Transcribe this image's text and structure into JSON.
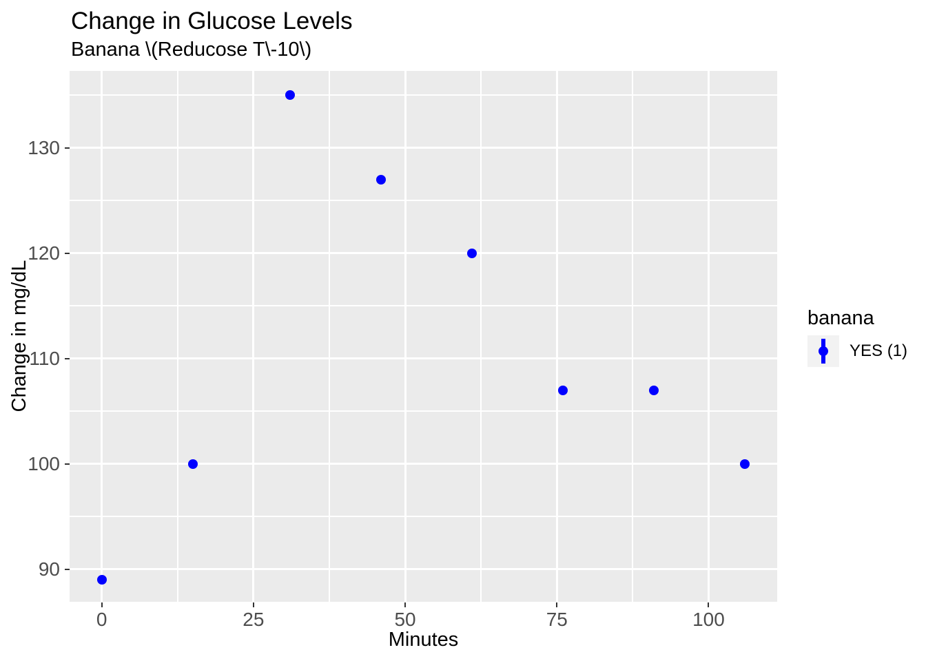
{
  "chart_data": {
    "type": "scatter",
    "title": "Change in Glucose Levels",
    "subtitle": "Banana \\(Reducose T\\-10\\)",
    "xlabel": "Minutes",
    "ylabel": "Change in mg/dL",
    "series": [
      {
        "name": "YES (1)",
        "color": "#0000FF",
        "points": [
          {
            "x": 0,
            "y": 89
          },
          {
            "x": 15,
            "y": 100
          },
          {
            "x": 31,
            "y": 135
          },
          {
            "x": 46,
            "y": 127
          },
          {
            "x": 61,
            "y": 120
          },
          {
            "x": 76,
            "y": 107
          },
          {
            "x": 91,
            "y": 107
          },
          {
            "x": 106,
            "y": 100
          }
        ]
      }
    ],
    "x_ticks": [
      0,
      25,
      50,
      75,
      100
    ],
    "y_ticks": [
      90,
      100,
      110,
      120,
      130
    ],
    "x_minor_gridlines": [
      12.5,
      37.5,
      62.5,
      87.5
    ],
    "y_minor_gridlines": [
      95,
      105,
      115,
      125,
      135
    ],
    "xlim": [
      -5.3,
      111.3
    ],
    "ylim": [
      86.9,
      137.3
    ],
    "grid": true,
    "legend": {
      "title": "banana",
      "position": "right",
      "entries": [
        {
          "label": "YES (1)",
          "glyph": "pointrange",
          "color": "#0000FF"
        }
      ]
    },
    "colors": {
      "point": "#0000FF",
      "panel_background": "#EBEBEB",
      "gridline": "#FFFFFF",
      "tick_label_text": "#4D4D4D",
      "tick_mark": "#333333",
      "title_text": "#000000",
      "legend_key_background": "#F2F2F2"
    }
  }
}
